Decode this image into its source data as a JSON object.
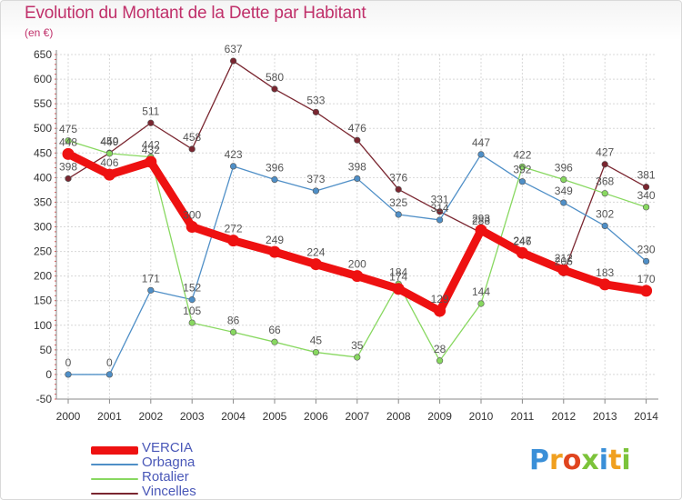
{
  "title": "Evolution du Montant de la Dette par Habitant",
  "unit_label": "(en €)",
  "logo": {
    "text": "Proxiti",
    "letters": [
      {
        "ch": "P",
        "color": "#3a8fd8"
      },
      {
        "ch": "r",
        "color": "#f0a020"
      },
      {
        "ch": "o",
        "color": "#e0451f"
      },
      {
        "ch": "x",
        "color": "#7cc33a"
      },
      {
        "ch": "i",
        "color": "#3a8fd8"
      },
      {
        "ch": "t",
        "color": "#f0a020"
      },
      {
        "ch": "i",
        "color": "#7cc33a"
      }
    ]
  },
  "chart_data": {
    "type": "line",
    "x": [
      "2000",
      "2001",
      "2002",
      "2003",
      "2004",
      "2005",
      "2006",
      "2007",
      "2008",
      "2009",
      "2010",
      "2011",
      "2012",
      "2013",
      "2014"
    ],
    "ylim": [
      -50,
      650
    ],
    "yticks": [
      -50,
      0,
      50,
      100,
      150,
      200,
      250,
      300,
      350,
      400,
      450,
      500,
      550,
      600,
      650
    ],
    "grid": true,
    "legend_position": "bottom-left",
    "series": [
      {
        "name": "VERCIA",
        "color": "#ee1111",
        "values": [
          448,
          406,
          432,
          300,
          272,
          249,
          224,
          200,
          174,
          129,
          293,
          247,
          212,
          183,
          170
        ]
      },
      {
        "name": "Orbagna",
        "color": "#4f8fc7",
        "values": [
          0,
          0,
          171,
          152,
          423,
          396,
          373,
          398,
          325,
          314,
          447,
          392,
          349,
          302,
          230
        ]
      },
      {
        "name": "Rotalier",
        "color": "#88d860",
        "values": [
          475,
          449,
          442,
          105,
          86,
          66,
          45,
          35,
          184,
          28,
          144,
          422,
          396,
          368,
          340
        ]
      },
      {
        "name": "Vincelles",
        "color": "#7a2630",
        "values": [
          398,
          450,
          511,
          458,
          637,
          580,
          533,
          476,
          376,
          331,
          288,
          246,
          206,
          427,
          381
        ]
      }
    ]
  }
}
